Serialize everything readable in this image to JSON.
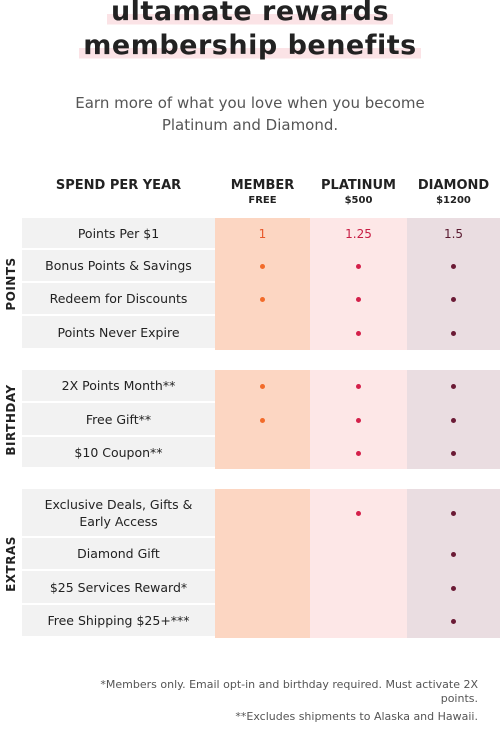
{
  "title": [
    "ultamate rewards",
    "membership benefits"
  ],
  "subtitle": "Earn more of what you love when you become Platinum and Diamond.",
  "header": {
    "label": "SPEND PER YEAR",
    "tiers": [
      {
        "name": "MEMBER",
        "spend": "FREE"
      },
      {
        "name": "PLATINUM",
        "spend": "$500"
      },
      {
        "name": "DIAMOND",
        "spend": "$1200"
      }
    ]
  },
  "sections": [
    {
      "name": "POINTS",
      "rows": [
        {
          "label": "Points Per $1",
          "cells": [
            "1",
            "1.25",
            "1.5"
          ]
        },
        {
          "label": "Bonus Points & Savings",
          "cells": [
            true,
            true,
            true
          ]
        },
        {
          "label": "Redeem for Discounts",
          "cells": [
            true,
            true,
            true
          ]
        },
        {
          "label": "Points Never Expire",
          "cells": [
            false,
            true,
            true
          ]
        }
      ]
    },
    {
      "name": "BIRTHDAY",
      "rows": [
        {
          "label": "2X Points Month**",
          "cells": [
            true,
            true,
            true
          ]
        },
        {
          "label": "Free Gift**",
          "cells": [
            true,
            true,
            true
          ]
        },
        {
          "label": "$10 Coupon**",
          "cells": [
            false,
            true,
            true
          ]
        }
      ]
    },
    {
      "name": "EXTRAS",
      "rows": [
        {
          "label": "Exclusive Deals, Gifts & Early Access",
          "cells": [
            false,
            true,
            true
          ]
        },
        {
          "label": "Diamond Gift",
          "cells": [
            false,
            false,
            true
          ]
        },
        {
          "label": "$25 Services Reward*",
          "cells": [
            false,
            false,
            true
          ]
        },
        {
          "label": "Free Shipping $25+***",
          "cells": [
            false,
            false,
            true
          ]
        }
      ]
    }
  ],
  "footnotes": [
    "*Members only. Email opt-in and birthday required. Must activate 2X points.",
    "**Excludes shipments to Alaska and Hawaii."
  ]
}
